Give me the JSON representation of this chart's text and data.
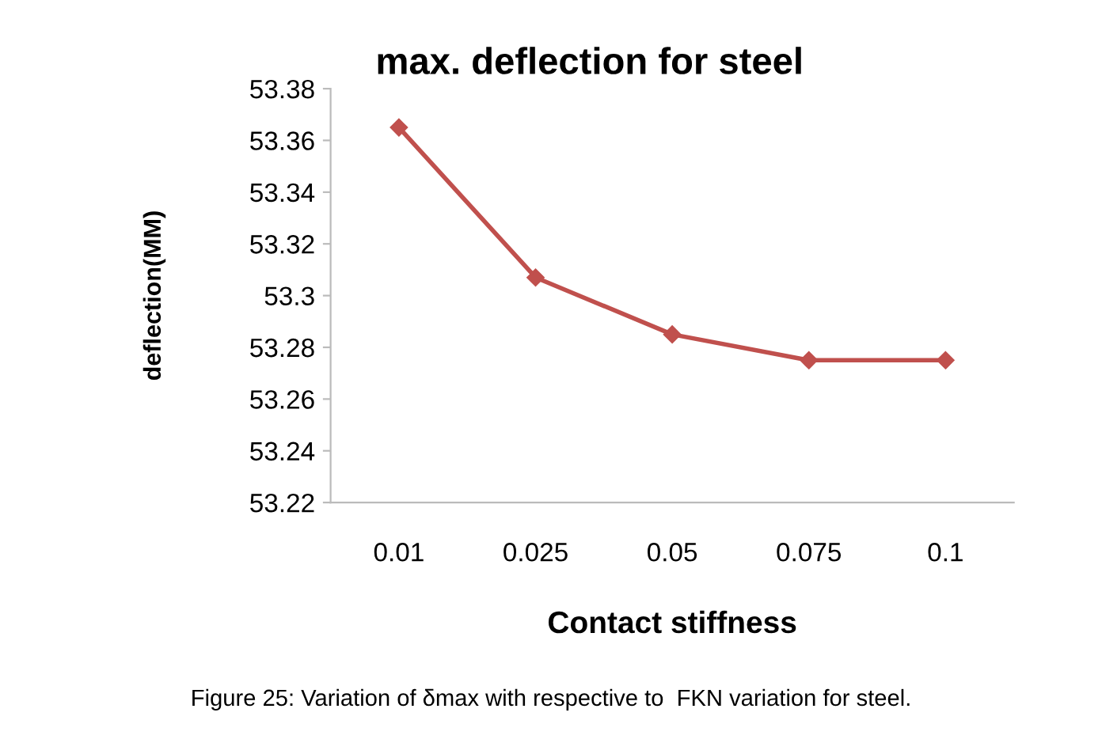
{
  "chart_data": {
    "type": "line",
    "title": "max. deflection for steel",
    "xlabel": "Contact stiffness",
    "ylabel": "deflection(MM)",
    "categories": [
      "0.01",
      "0.025",
      "0.05",
      "0.075",
      "0.1"
    ],
    "series": [
      {
        "color": "#c0504d",
        "values": [
          53.365,
          53.307,
          53.285,
          53.275,
          53.275
        ]
      }
    ],
    "ylim": [
      53.22,
      53.38
    ],
    "yticks": [
      53.22,
      53.24,
      53.26,
      53.28,
      53.3,
      53.32,
      53.34,
      53.36,
      53.38
    ],
    "marker": "diamond",
    "line_style": "solid",
    "grid": false,
    "legend": false,
    "annotations": [
      "Figure 25: Variation of δmax with respective to  FKN variation for steel."
    ]
  }
}
